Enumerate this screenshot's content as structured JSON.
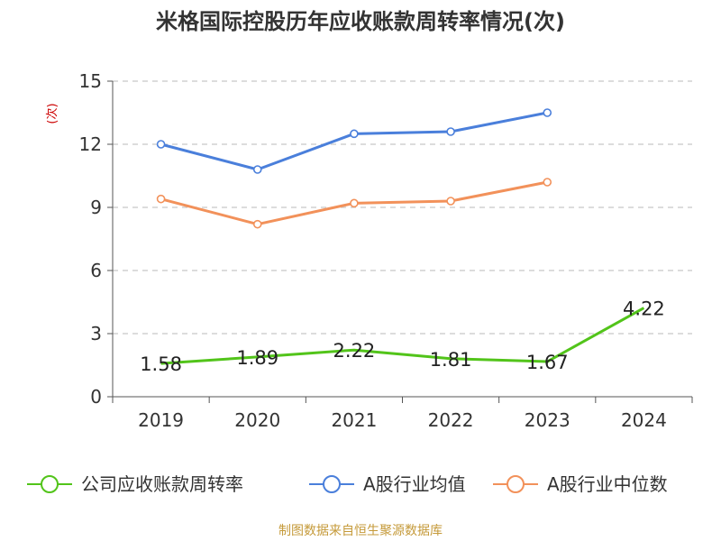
{
  "chart_data": {
    "type": "line",
    "title": "米格国际控股历年应收账款周转率情况(次)",
    "ylabel": "(次)",
    "xlabel": "",
    "categories": [
      "2019",
      "2020",
      "2021",
      "2022",
      "2023",
      "2024"
    ],
    "ylim": [
      0,
      15
    ],
    "yticks": [
      0,
      3,
      6,
      9,
      12,
      15
    ],
    "grid": "horizontal dashed",
    "legend_position": "bottom",
    "series": [
      {
        "name": "公司应收账款周转率",
        "color": "#52c41a",
        "values": [
          1.58,
          1.89,
          2.22,
          1.81,
          1.67,
          4.22
        ],
        "labels": [
          "1.58",
          "1.89",
          "2.22",
          "1.81",
          "1.67",
          "4.22"
        ]
      },
      {
        "name": "A股行业均值",
        "color": "#4a7fdb",
        "values": [
          12.0,
          10.8,
          12.5,
          12.6,
          13.5,
          null
        ]
      },
      {
        "name": "A股行业中位数",
        "color": "#f2915a",
        "values": [
          9.4,
          8.2,
          9.2,
          9.3,
          10.2,
          null
        ]
      }
    ],
    "source": "制图数据来自恒生聚源数据库"
  }
}
